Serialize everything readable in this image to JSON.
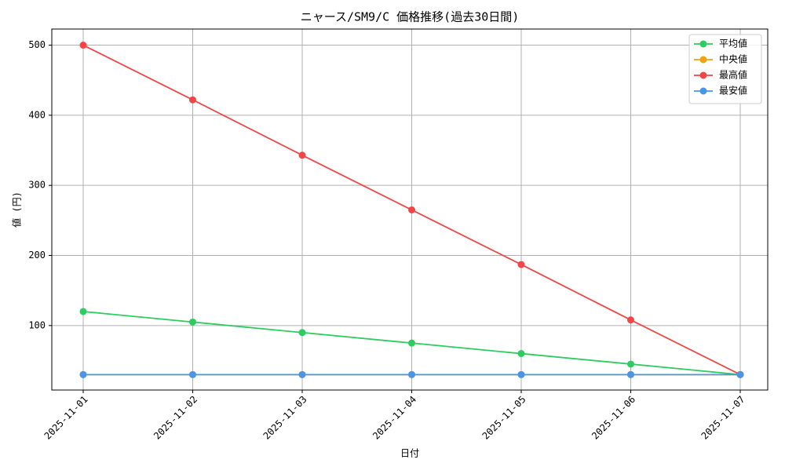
{
  "chart_data": {
    "type": "line",
    "title": "ニャース/SM9/C 価格推移(過去30日間)",
    "x_label": "日付",
    "y_label": "値 (円)",
    "categories": [
      "2025-11-01",
      "2025-11-02",
      "2025-11-03",
      "2025-11-04",
      "2025-11-05",
      "2025-11-06",
      "2025-11-07"
    ],
    "series": [
      {
        "name": "平均値",
        "color": "#2ecc60",
        "values": [
          120,
          105,
          90,
          75,
          60,
          45,
          30
        ]
      },
      {
        "name": "中央値",
        "color": "#f0a30a",
        "values": [
          30,
          30,
          30,
          30,
          30,
          30,
          30
        ]
      },
      {
        "name": "最高値",
        "color": "#f24646",
        "values": [
          500,
          422,
          343,
          265,
          187,
          108,
          30
        ]
      },
      {
        "name": "最安値",
        "color": "#4a94ec",
        "values": [
          30,
          30,
          30,
          30,
          30,
          30,
          30
        ]
      }
    ],
    "ylim": [
      8,
      523
    ],
    "yticks": [
      100,
      200,
      300,
      400,
      500
    ],
    "grid": true,
    "legend": "upper right"
  }
}
